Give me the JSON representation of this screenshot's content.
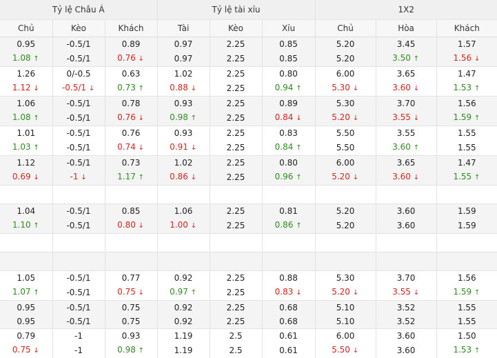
{
  "headers": {
    "groups": [
      "Tỷ lệ Châu Á",
      "Tỷ lệ tài xỉu",
      "1X2"
    ],
    "columns": [
      "Chủ",
      "Kèo",
      "Khách",
      "Tài",
      "Kèo",
      "Xỉu",
      "Chủ",
      "Hòa",
      "Khách"
    ]
  },
  "colors": {
    "up": "#2e8b1f",
    "down": "#d6231c",
    "header_bg": "#f0f0f0",
    "row_alt_bg": "#f4f4f4"
  },
  "icons": {
    "up": "arrow-up-icon",
    "down": "arrow-down-icon"
  },
  "rows": [
    {
      "type": "group",
      "shade": "even",
      "lines": [
        [
          {
            "v": "0.95"
          },
          {
            "v": "-0.5/1"
          },
          {
            "v": "0.89"
          },
          {
            "v": "0.97"
          },
          {
            "v": "2.25"
          },
          {
            "v": "0.85"
          },
          {
            "v": "5.20"
          },
          {
            "v": "3.45"
          },
          {
            "v": "1.57"
          }
        ],
        [
          {
            "v": "1.08",
            "d": "up"
          },
          {
            "v": "-0.5/1"
          },
          {
            "v": "0.76",
            "d": "down"
          },
          {
            "v": "0.97"
          },
          {
            "v": "2.25"
          },
          {
            "v": "0.85"
          },
          {
            "v": "5.20"
          },
          {
            "v": "3.50",
            "d": "up"
          },
          {
            "v": "1.56",
            "d": "down"
          }
        ]
      ]
    },
    {
      "type": "group",
      "shade": "odd",
      "lines": [
        [
          {
            "v": "1.26"
          },
          {
            "v": "0/-0.5"
          },
          {
            "v": "0.63"
          },
          {
            "v": "1.02"
          },
          {
            "v": "2.25"
          },
          {
            "v": "0.80"
          },
          {
            "v": "6.00"
          },
          {
            "v": "3.65"
          },
          {
            "v": "1.47"
          }
        ],
        [
          {
            "v": "1.12",
            "d": "down"
          },
          {
            "v": "-0.5/1",
            "d": "down"
          },
          {
            "v": "0.73",
            "d": "up"
          },
          {
            "v": "0.88",
            "d": "down"
          },
          {
            "v": "2.25"
          },
          {
            "v": "0.94",
            "d": "up"
          },
          {
            "v": "5.30",
            "d": "down"
          },
          {
            "v": "3.60",
            "d": "down"
          },
          {
            "v": "1.53",
            "d": "up"
          }
        ]
      ]
    },
    {
      "type": "group",
      "shade": "even",
      "lines": [
        [
          {
            "v": "1.06"
          },
          {
            "v": "-0.5/1"
          },
          {
            "v": "0.78"
          },
          {
            "v": "0.93"
          },
          {
            "v": "2.25"
          },
          {
            "v": "0.89"
          },
          {
            "v": "5.30"
          },
          {
            "v": "3.70"
          },
          {
            "v": "1.56"
          }
        ],
        [
          {
            "v": "1.08",
            "d": "up"
          },
          {
            "v": "-0.5/1"
          },
          {
            "v": "0.76",
            "d": "down"
          },
          {
            "v": "0.98",
            "d": "up"
          },
          {
            "v": "2.25"
          },
          {
            "v": "0.84",
            "d": "down"
          },
          {
            "v": "5.20",
            "d": "down"
          },
          {
            "v": "3.55",
            "d": "down"
          },
          {
            "v": "1.59",
            "d": "up"
          }
        ]
      ]
    },
    {
      "type": "group",
      "shade": "odd",
      "lines": [
        [
          {
            "v": "1.01"
          },
          {
            "v": "-0.5/1"
          },
          {
            "v": "0.76"
          },
          {
            "v": "0.93"
          },
          {
            "v": "2.25"
          },
          {
            "v": "0.83"
          },
          {
            "v": "5.50"
          },
          {
            "v": "3.55"
          },
          {
            "v": "1.55"
          }
        ],
        [
          {
            "v": "1.03",
            "d": "up"
          },
          {
            "v": "-0.5/1"
          },
          {
            "v": "0.74",
            "d": "down"
          },
          {
            "v": "0.91",
            "d": "down"
          },
          {
            "v": "2.25"
          },
          {
            "v": "0.84",
            "d": "up"
          },
          {
            "v": "5.50"
          },
          {
            "v": "3.60",
            "d": "up"
          },
          {
            "v": "1.55"
          }
        ]
      ]
    },
    {
      "type": "group",
      "shade": "even",
      "lines": [
        [
          {
            "v": "1.12"
          },
          {
            "v": "-0.5/1"
          },
          {
            "v": "0.73"
          },
          {
            "v": "1.02"
          },
          {
            "v": "2.25"
          },
          {
            "v": "0.80"
          },
          {
            "v": "6.00"
          },
          {
            "v": "3.65"
          },
          {
            "v": "1.47"
          }
        ],
        [
          {
            "v": "0.69",
            "d": "down"
          },
          {
            "v": "-1",
            "d": "down"
          },
          {
            "v": "1.17",
            "d": "up"
          },
          {
            "v": "0.86",
            "d": "down"
          },
          {
            "v": "2.25"
          },
          {
            "v": "0.96",
            "d": "up"
          },
          {
            "v": "5.20",
            "d": "down"
          },
          {
            "v": "3.60",
            "d": "down"
          },
          {
            "v": "1.55",
            "d": "up"
          }
        ]
      ]
    },
    {
      "type": "blank"
    },
    {
      "type": "group",
      "shade": "even",
      "lines": [
        [
          {
            "v": "1.04"
          },
          {
            "v": "-0.5/1"
          },
          {
            "v": "0.85"
          },
          {
            "v": "1.06"
          },
          {
            "v": "2.25"
          },
          {
            "v": "0.81"
          },
          {
            "v": "5.20"
          },
          {
            "v": "3.60"
          },
          {
            "v": "1.59"
          }
        ],
        [
          {
            "v": "1.10",
            "d": "up"
          },
          {
            "v": "-0.5/1"
          },
          {
            "v": "0.80",
            "d": "down"
          },
          {
            "v": "1.00",
            "d": "down"
          },
          {
            "v": "2.25"
          },
          {
            "v": "0.86",
            "d": "up"
          },
          {
            "v": "5.20"
          },
          {
            "v": "3.60"
          },
          {
            "v": "1.59"
          }
        ]
      ]
    },
    {
      "type": "blank"
    },
    {
      "type": "blank",
      "shade": "even"
    },
    {
      "type": "group",
      "shade": "odd",
      "lines": [
        [
          {
            "v": "1.05"
          },
          {
            "v": "-0.5/1"
          },
          {
            "v": "0.77"
          },
          {
            "v": "0.92"
          },
          {
            "v": "2.25"
          },
          {
            "v": "0.88"
          },
          {
            "v": "5.30"
          },
          {
            "v": "3.70"
          },
          {
            "v": "1.56"
          }
        ],
        [
          {
            "v": "1.07",
            "d": "up"
          },
          {
            "v": "-0.5/1"
          },
          {
            "v": "0.75",
            "d": "down"
          },
          {
            "v": "0.97",
            "d": "up"
          },
          {
            "v": "2.25"
          },
          {
            "v": "0.83",
            "d": "down"
          },
          {
            "v": "5.20",
            "d": "down"
          },
          {
            "v": "3.55",
            "d": "down"
          },
          {
            "v": "1.59",
            "d": "up"
          }
        ]
      ]
    },
    {
      "type": "group",
      "shade": "even",
      "lines": [
        [
          {
            "v": "0.95"
          },
          {
            "v": "-0.5/1"
          },
          {
            "v": "0.75"
          },
          {
            "v": "0.92"
          },
          {
            "v": "2.25"
          },
          {
            "v": "0.68"
          },
          {
            "v": "5.10"
          },
          {
            "v": "3.52"
          },
          {
            "v": "1.55"
          }
        ],
        [
          {
            "v": "0.95"
          },
          {
            "v": "-0.5/1"
          },
          {
            "v": "0.75"
          },
          {
            "v": "0.92"
          },
          {
            "v": "2.25"
          },
          {
            "v": "0.68"
          },
          {
            "v": "5.10"
          },
          {
            "v": "3.52"
          },
          {
            "v": "1.55"
          }
        ]
      ]
    },
    {
      "type": "group",
      "shade": "odd",
      "lines": [
        [
          {
            "v": "0.79"
          },
          {
            "v": "-1"
          },
          {
            "v": "0.93"
          },
          {
            "v": "1.19"
          },
          {
            "v": "2.5"
          },
          {
            "v": "0.61"
          },
          {
            "v": "6.00"
          },
          {
            "v": "3.60"
          },
          {
            "v": "1.50"
          }
        ],
        [
          {
            "v": "0.75",
            "d": "down"
          },
          {
            "v": "-1"
          },
          {
            "v": "0.98",
            "d": "up"
          },
          {
            "v": "1.19"
          },
          {
            "v": "2.5"
          },
          {
            "v": "0.61"
          },
          {
            "v": "5.50",
            "d": "down"
          },
          {
            "v": "3.60"
          },
          {
            "v": "1.53",
            "d": "up"
          }
        ]
      ]
    }
  ]
}
